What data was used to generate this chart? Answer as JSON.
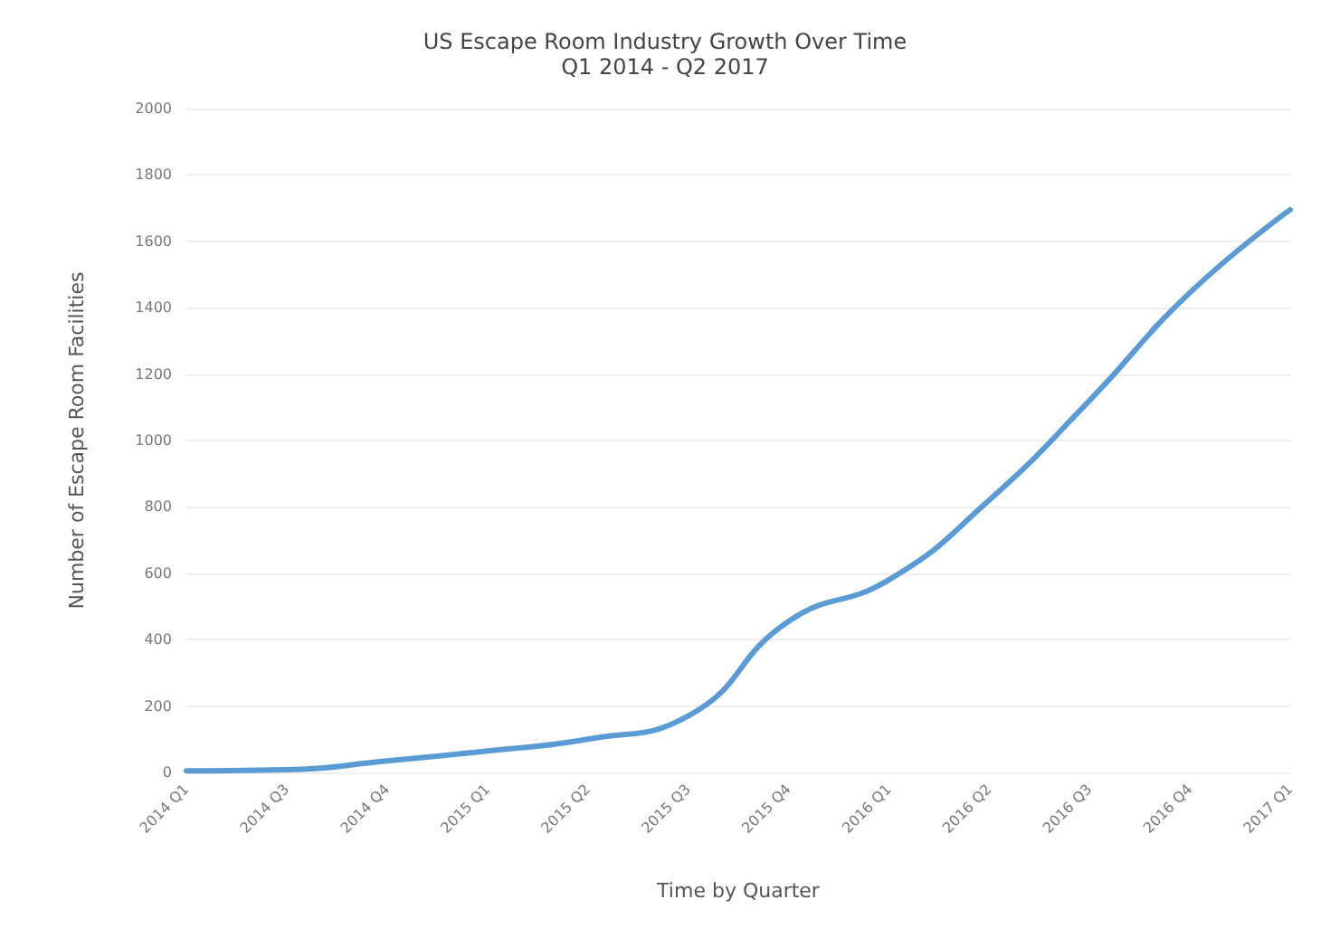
{
  "chart_data": {
    "type": "line",
    "title": "US Escape Room Industry Growth Over Time",
    "subtitle": "Q1 2014 - Q2 2017",
    "xlabel": "Time by Quarter",
    "ylabel": "Number of Escape Room Facilities",
    "categories": [
      "2014 Q1",
      "2014 Q3",
      "2014 Q4",
      "2015 Q1",
      "2015 Q2",
      "2015 Q3",
      "2015 Q4",
      "2016 Q1",
      "2016 Q2",
      "2016 Q3",
      "2016 Q4",
      "2017 Q1"
    ],
    "series": [
      {
        "color": "#5b9bd5",
        "values": [
          5,
          8,
          35,
          65,
          100,
          170,
          455,
          580,
          820,
          1120,
          1445,
          1695
        ]
      }
    ],
    "ylim": [
      0,
      2000
    ],
    "yticks": [
      0,
      200,
      400,
      600,
      800,
      1000,
      1200,
      1400,
      1600,
      1800,
      2000
    ],
    "grid": "y",
    "marker": "none",
    "line_style": "solid"
  }
}
